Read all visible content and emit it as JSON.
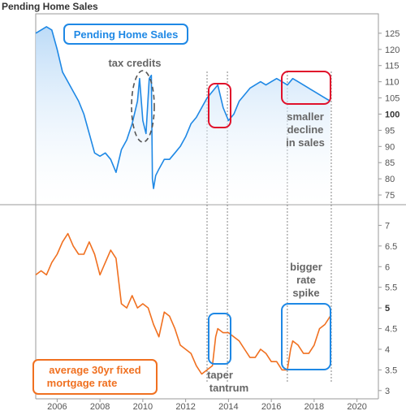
{
  "page_title": "Pending Home Sales",
  "chart_data": [
    {
      "type": "area",
      "label": "Pending Home Sales",
      "color": "#1e88e5",
      "ylim": [
        72,
        131
      ],
      "yticks": [
        75,
        80,
        85,
        90,
        95,
        100,
        105,
        110,
        115,
        120,
        125
      ],
      "bold_tick": 100,
      "x": [
        2005.0,
        2005.25,
        2005.5,
        2005.75,
        2006.0,
        2006.25,
        2006.5,
        2006.75,
        2007.0,
        2007.25,
        2007.5,
        2007.75,
        2008.0,
        2008.25,
        2008.5,
        2008.75,
        2009.0,
        2009.25,
        2009.5,
        2009.75,
        2009.85,
        2010.0,
        2010.15,
        2010.3,
        2010.4,
        2010.45,
        2010.5,
        2010.6,
        2010.75,
        2011.0,
        2011.25,
        2011.5,
        2011.75,
        2012.0,
        2012.25,
        2012.5,
        2012.75,
        2013.0,
        2013.25,
        2013.5,
        2013.75,
        2014.0,
        2014.25,
        2014.5,
        2014.75,
        2015.0,
        2015.25,
        2015.5,
        2015.75,
        2016.0,
        2016.25,
        2016.5,
        2016.75,
        2017.0,
        2017.25,
        2017.5,
        2017.75,
        2018.0,
        2018.25,
        2018.5,
        2018.75
      ],
      "y": [
        125,
        126,
        127,
        126,
        120,
        113,
        110,
        107,
        104,
        100,
        94,
        88,
        87,
        88,
        86,
        82,
        89,
        92,
        97,
        104,
        111,
        98,
        94,
        111,
        112,
        80,
        77,
        81,
        83,
        86,
        86,
        88,
        90,
        93,
        97,
        99,
        102,
        105,
        107,
        109,
        102,
        98,
        100,
        104,
        106,
        108,
        109,
        110,
        109,
        110,
        111,
        110,
        109,
        111,
        110,
        109,
        108,
        107,
        106,
        105,
        104
      ],
      "annotations": [
        "tax credits",
        "smaller",
        "decline",
        "in sales"
      ]
    },
    {
      "type": "line",
      "label_lines": [
        "average 30yr fixed",
        "mortgage rate"
      ],
      "color": "#f07020",
      "ylim": [
        2.8,
        7.5
      ],
      "yticks": [
        3,
        3.5,
        4,
        4.5,
        5,
        5.5,
        6,
        6.5,
        7
      ],
      "bold_tick": 5,
      "x": [
        2005.0,
        2005.25,
        2005.5,
        2005.75,
        2006.0,
        2006.25,
        2006.5,
        2006.75,
        2007.0,
        2007.25,
        2007.5,
        2007.75,
        2008.0,
        2008.25,
        2008.5,
        2008.75,
        2009.0,
        2009.25,
        2009.5,
        2009.75,
        2010.0,
        2010.25,
        2010.5,
        2010.75,
        2011.0,
        2011.25,
        2011.5,
        2011.75,
        2012.0,
        2012.25,
        2012.5,
        2012.75,
        2013.0,
        2013.25,
        2013.4,
        2013.5,
        2013.75,
        2014.0,
        2014.25,
        2014.5,
        2014.75,
        2015.0,
        2015.25,
        2015.5,
        2015.75,
        2016.0,
        2016.25,
        2016.5,
        2016.75,
        2016.9,
        2017.0,
        2017.25,
        2017.5,
        2017.75,
        2018.0,
        2018.25,
        2018.5,
        2018.75
      ],
      "y": [
        5.8,
        5.9,
        5.8,
        6.1,
        6.3,
        6.6,
        6.8,
        6.5,
        6.3,
        6.3,
        6.6,
        6.3,
        5.8,
        6.1,
        6.4,
        6.2,
        5.1,
        5.0,
        5.3,
        5.0,
        5.1,
        5.0,
        4.6,
        4.3,
        4.9,
        4.8,
        4.5,
        4.1,
        4.0,
        3.9,
        3.6,
        3.4,
        3.5,
        3.6,
        4.3,
        4.5,
        4.4,
        4.4,
        4.3,
        4.2,
        4.0,
        3.8,
        3.8,
        4.0,
        3.9,
        3.7,
        3.7,
        3.5,
        3.5,
        4.0,
        4.2,
        4.1,
        3.9,
        3.9,
        4.1,
        4.5,
        4.6,
        4.8
      ],
      "annotations": [
        "bigger",
        "rate",
        "spike",
        "taper",
        "tantrum"
      ]
    }
  ],
  "x_axis": {
    "ticks": [
      "2006",
      "2008",
      "2010",
      "2012",
      "2014",
      "2016",
      "2018",
      "2020"
    ],
    "tick_values": [
      2006,
      2008,
      2010,
      2012,
      2014,
      2016,
      2018,
      2020
    ],
    "xlim": [
      2005.0,
      2021.0
    ]
  },
  "vertical_marks": [
    2013.0,
    2013.95,
    2016.75,
    2018.8
  ],
  "highlight_colors": {
    "pending": "#e0112b",
    "rate": "#1e88e5",
    "credits": "#555555"
  }
}
